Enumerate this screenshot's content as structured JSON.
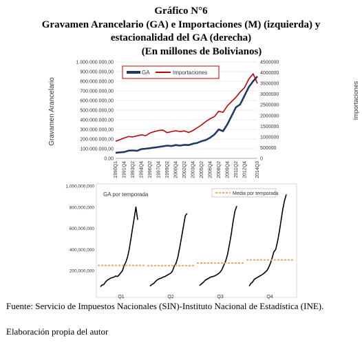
{
  "title": {
    "line1": "Gráfico N°6",
    "line2": "Gravamen Arancelario (GA) e Importaciones (M) (izquierda) y",
    "line3": "estacionalidad del GA (derecha)",
    "line4": "(En millones de Bolivianos)"
  },
  "footer": {
    "source": "Fuente: Servicio de Impuestos Nacionales (SIN)-Instituto Nacional de Estadística (INE).",
    "author": "Elaboración propia del autor"
  },
  "colors": {
    "ga": "#1f3864",
    "importaciones": "#c00000",
    "media": "#f4a460"
  },
  "chart_data": [
    {
      "type": "line",
      "ylabel": "Gravamen Arancelario",
      "y2label": "Importaciones",
      "ylim": [
        0,
        1000000000
      ],
      "y2lim": [
        0,
        4500000
      ],
      "yticks": [
        "0,00",
        "100.000.000,00",
        "200.000.000,00",
        "300.000.000,00",
        "400.000.000,00",
        "500.000.000,00",
        "600.000.000,00",
        "700.000.000,00",
        "800.000.000,00",
        "900.000.000,00",
        "1.000.000.000,00"
      ],
      "y2ticks": [
        "0",
        "500000",
        "1000000",
        "1500000",
        "2000000",
        "2500000",
        "3000000",
        "3500000",
        "4000000",
        "4500000"
      ],
      "x": [
        "1990Q1",
        "1991Q1",
        "1991Q4",
        "1992Q3",
        "1993Q2",
        "1994Q1",
        "1994Q4",
        "1995Q3",
        "1996Q2",
        "1997Q1",
        "1997Q4",
        "1998Q3",
        "1999Q2",
        "2000Q1",
        "2000Q4",
        "2001Q3",
        "2002Q2",
        "2003Q1",
        "2003Q4",
        "2004Q3",
        "2005Q2",
        "2006Q1",
        "2006Q4",
        "2007Q3",
        "2008Q2",
        "2009Q1",
        "2009Q4",
        "2010Q3",
        "2011Q2",
        "2012Q1",
        "2012Q4",
        "2013Q3",
        "2014Q2",
        "2015Q1"
      ],
      "xticks": [
        "1990Q1",
        "1991Q4",
        "1993Q2",
        "1994Q4",
        "1996Q2",
        "1997Q4",
        "1999Q2",
        "2000Q4",
        "2002Q2",
        "2003Q4",
        "2005Q2",
        "2006Q4",
        "2008Q2",
        "2009Q4",
        "2011Q2",
        "2012Q4",
        "2014Q3"
      ],
      "legend_position": "top-left",
      "series": [
        {
          "name": "GA",
          "axis": "left",
          "values": [
            58000000,
            62000000,
            66000000,
            80000000,
            82000000,
            78000000,
            96000000,
            100000000,
            106000000,
            112000000,
            118000000,
            125000000,
            132000000,
            128000000,
            138000000,
            132000000,
            140000000,
            138000000,
            152000000,
            160000000,
            178000000,
            190000000,
            214000000,
            248000000,
            300000000,
            282000000,
            352000000,
            440000000,
            530000000,
            560000000,
            650000000,
            740000000,
            800000000,
            850000000
          ]
        },
        {
          "name": "Importaciones",
          "axis": "right",
          "values": [
            800000,
            870000,
            950000,
            1020000,
            1000000,
            1050000,
            1100000,
            1060000,
            1180000,
            1250000,
            1300000,
            1320000,
            1200000,
            1250000,
            1290000,
            1250000,
            1280000,
            1210000,
            1300000,
            1430000,
            1560000,
            1720000,
            1850000,
            1950000,
            2200000,
            2150000,
            2450000,
            2650000,
            2850000,
            3100000,
            3300000,
            3700000,
            3950000,
            3500000
          ]
        }
      ]
    },
    {
      "type": "line",
      "title": "GA por temporada",
      "ylim": [
        0,
        1000000000
      ],
      "yticks": [
        "200,000,000",
        "400,000,000",
        "600,000,000",
        "800,000,000",
        "1,000,000,000"
      ],
      "categories": [
        "Q1",
        "Q2",
        "Q3",
        "Q4"
      ],
      "legend_position": "top-right",
      "series": [
        {
          "name": "GA",
          "Q1": [
            50000000,
            65000000,
            70000000,
            95000000,
            110000000,
            120000000,
            130000000,
            135000000,
            140000000,
            150000000,
            145000000,
            160000000,
            180000000,
            200000000,
            250000000,
            280000000,
            330000000,
            400000000,
            500000000,
            600000000,
            700000000,
            800000000,
            680000000
          ],
          "Q2": [
            55000000,
            70000000,
            80000000,
            100000000,
            115000000,
            125000000,
            130000000,
            140000000,
            145000000,
            155000000,
            165000000,
            175000000,
            195000000,
            240000000,
            270000000,
            330000000,
            420000000,
            520000000,
            620000000,
            720000000,
            740000000
          ],
          "Q3": [
            60000000,
            75000000,
            90000000,
            110000000,
            120000000,
            130000000,
            140000000,
            145000000,
            150000000,
            160000000,
            170000000,
            185000000,
            210000000,
            250000000,
            290000000,
            350000000,
            440000000,
            540000000,
            660000000,
            760000000,
            810000000
          ],
          "Q4": [
            55000000,
            80000000,
            95000000,
            120000000,
            130000000,
            140000000,
            150000000,
            160000000,
            170000000,
            185000000,
            200000000,
            230000000,
            270000000,
            320000000,
            380000000,
            400000000,
            470000000,
            560000000,
            670000000,
            780000000,
            860000000,
            920000000
          ]
        },
        {
          "name": "Media por temporada",
          "values": [
            250000000,
            248000000,
            272000000,
            302000000
          ]
        }
      ]
    }
  ]
}
